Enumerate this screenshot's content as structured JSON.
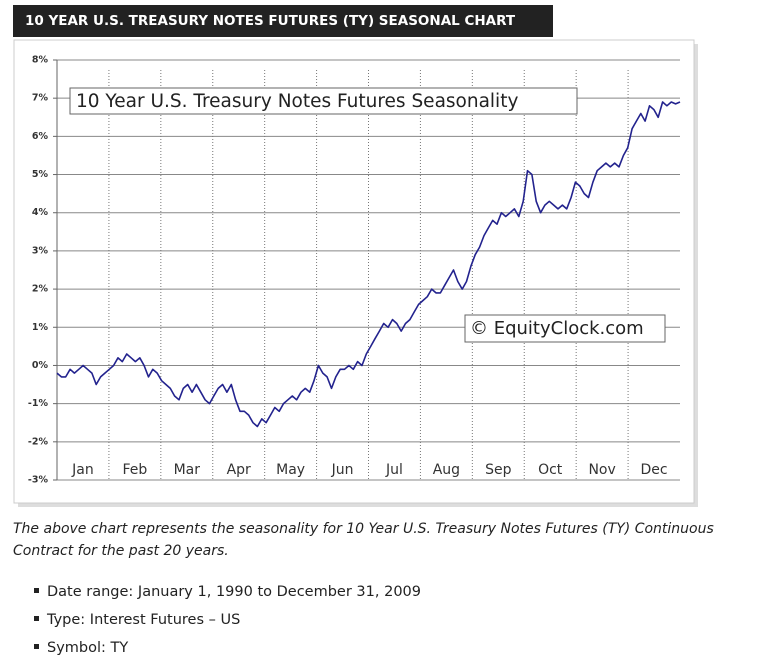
{
  "header": {
    "title": "10 YEAR U.S. TREASURY NOTES FUTURES (TY) SEASONAL CHART"
  },
  "chart_data": {
    "type": "line",
    "series": [
      {
        "name": "10 Year U.S. Treasury Notes Futures Seasonality",
        "color": "#23238e",
        "values": [
          -0.2,
          -0.3,
          -0.3,
          -0.1,
          -0.2,
          -0.1,
          0.0,
          -0.1,
          -0.2,
          -0.5,
          -0.3,
          -0.2,
          -0.1,
          0.0,
          0.2,
          0.1,
          0.3,
          0.2,
          0.1,
          0.2,
          0.0,
          -0.3,
          -0.1,
          -0.2,
          -0.4,
          -0.5,
          -0.6,
          -0.8,
          -0.9,
          -0.6,
          -0.5,
          -0.7,
          -0.5,
          -0.7,
          -0.9,
          -1.0,
          -0.8,
          -0.6,
          -0.5,
          -0.7,
          -0.5,
          -0.9,
          -1.2,
          -1.2,
          -1.3,
          -1.5,
          -1.6,
          -1.4,
          -1.5,
          -1.3,
          -1.1,
          -1.2,
          -1.0,
          -0.9,
          -0.8,
          -0.9,
          -0.7,
          -0.6,
          -0.7,
          -0.4,
          0.0,
          -0.2,
          -0.3,
          -0.6,
          -0.3,
          -0.1,
          -0.1,
          0.0,
          -0.1,
          0.1,
          0.0,
          0.3,
          0.5,
          0.7,
          0.9,
          1.1,
          1.0,
          1.2,
          1.1,
          0.9,
          1.1,
          1.2,
          1.4,
          1.6,
          1.7,
          1.8,
          2.0,
          1.9,
          1.9,
          2.1,
          2.3,
          2.5,
          2.2,
          2.0,
          2.2,
          2.6,
          2.9,
          3.1,
          3.4,
          3.6,
          3.8,
          3.7,
          4.0,
          3.9,
          4.0,
          4.1,
          3.9,
          4.3,
          5.1,
          5.0,
          4.3,
          4.0,
          4.2,
          4.3,
          4.2,
          4.1,
          4.2,
          4.1,
          4.4,
          4.8,
          4.7,
          4.5,
          4.4,
          4.8,
          5.1,
          5.2,
          5.3,
          5.2,
          5.3,
          5.2,
          5.5,
          5.7,
          6.2,
          6.4,
          6.6,
          6.4,
          6.8,
          6.7,
          6.5,
          6.9,
          6.8,
          6.9,
          6.85,
          6.9
        ]
      }
    ],
    "x_labels": [
      "Jan",
      "Feb",
      "Mar",
      "Apr",
      "May",
      "Jun",
      "Jul",
      "Aug",
      "Sep",
      "Oct",
      "Nov",
      "Dec"
    ],
    "ylim": [
      -3,
      8
    ],
    "yticks": [
      {
        "value": -3,
        "label": "-3%"
      },
      {
        "value": -2,
        "label": "-2%"
      },
      {
        "value": -1,
        "label": "-1%"
      },
      {
        "value": 0,
        "label": "0%"
      },
      {
        "value": 1,
        "label": "1%"
      },
      {
        "value": 2,
        "label": "2%"
      },
      {
        "value": 3,
        "label": "3%"
      },
      {
        "value": 4,
        "label": "4%"
      },
      {
        "value": 5,
        "label": "5%"
      },
      {
        "value": 6,
        "label": "6%"
      },
      {
        "value": 7,
        "label": "7%"
      },
      {
        "value": 8,
        "label": "8%"
      }
    ],
    "grid": true,
    "watermark": "© EquityClock.com"
  },
  "caption": "The above chart represents the seasonality for 10 Year U.S. Treasury Notes Futures (TY) Continuous Contract for the past 20 years.",
  "details": [
    "Date range: January 1, 1990 to December 31, 2009",
    "Type: Interest Futures – US",
    "Symbol: TY"
  ]
}
